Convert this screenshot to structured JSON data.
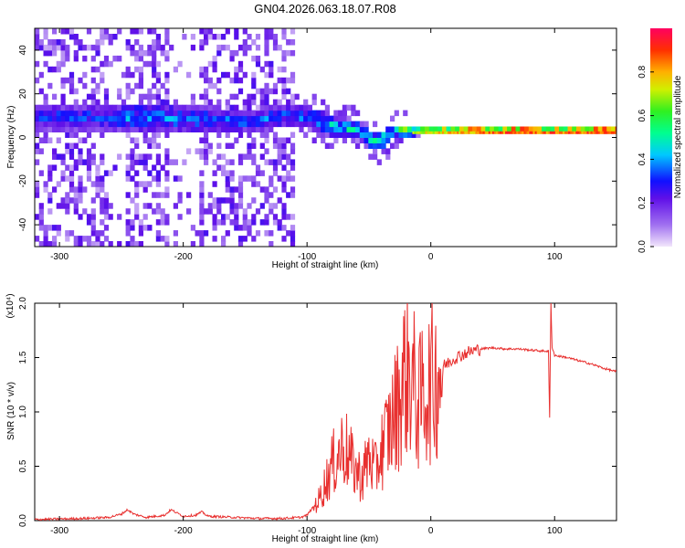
{
  "title": "GN04.2026.063.18.07.R08",
  "chart_data": [
    {
      "type": "heatmap",
      "name": "spectrogram",
      "xlabel": "Height of straight line (km)",
      "ylabel": "Frequency (Hz)",
      "xlim": [
        -320,
        150
      ],
      "ylim": [
        -50,
        50
      ],
      "xticks": [
        -300,
        -200,
        -100,
        0,
        100
      ],
      "yticks": [
        -40,
        -20,
        0,
        20,
        40
      ],
      "colorbar": {
        "label": "Normalized spectral amplitude",
        "range": [
          0,
          1
        ],
        "ticks": [
          0.0,
          0.2,
          0.4,
          0.6,
          0.8
        ]
      },
      "signal_band": [
        {
          "x": -265,
          "center": 8,
          "width": 6,
          "amp": 0.35
        },
        {
          "x": -240,
          "center": 8,
          "width": 7,
          "amp": 0.4
        },
        {
          "x": -220,
          "center": 8,
          "width": 7,
          "amp": 0.4
        },
        {
          "x": -200,
          "center": 7,
          "width": 6,
          "amp": 0.38
        },
        {
          "x": -180,
          "center": 7,
          "width": 6,
          "amp": 0.38
        },
        {
          "x": -150,
          "center": 6,
          "width": 5,
          "amp": 0.35
        },
        {
          "x": -120,
          "center": 9,
          "width": 6,
          "amp": 0.35
        },
        {
          "x": -100,
          "center": 8,
          "width": 5,
          "amp": 0.4
        },
        {
          "x": -80,
          "center": 4,
          "width": 5,
          "amp": 0.45
        },
        {
          "x": -60,
          "center": 2,
          "width": 4,
          "amp": 0.5
        },
        {
          "x": -45,
          "center": -4,
          "width": 4,
          "amp": 0.55
        },
        {
          "x": -30,
          "center": 2,
          "width": 3,
          "amp": 0.6
        },
        {
          "x": -10,
          "center": 2,
          "width": 2,
          "amp": 0.75
        },
        {
          "x": 10,
          "center": 2,
          "width": 2,
          "amp": 0.8
        },
        {
          "x": 50,
          "center": 2,
          "width": 2,
          "amp": 0.9
        },
        {
          "x": 100,
          "center": 2,
          "width": 2,
          "amp": 0.9
        },
        {
          "x": 150,
          "center": 2,
          "width": 2,
          "amp": 0.9
        }
      ]
    },
    {
      "type": "line",
      "name": "snr",
      "xlabel": "Height of straight line (km)",
      "ylabel": "SNR (10 * v/v)",
      "scale_label": "(x10⁴)",
      "color": "#e8302f",
      "xlim": [
        -320,
        150
      ],
      "ylim": [
        0,
        2.0
      ],
      "xticks": [
        -300,
        -200,
        -100,
        0,
        100
      ],
      "yticks": [
        0.0,
        0.5,
        1.0,
        1.5,
        2.0
      ],
      "x": [
        -320,
        -280,
        -260,
        -250,
        -245,
        -240,
        -230,
        -215,
        -210,
        -200,
        -190,
        -185,
        -180,
        -160,
        -140,
        -120,
        -105,
        -100,
        -90,
        -80,
        -75,
        -70,
        -65,
        -60,
        -55,
        -50,
        -45,
        -40,
        -35,
        -30,
        -25,
        -20,
        -15,
        -10,
        -5,
        0,
        5,
        10,
        20,
        30,
        40,
        50,
        60,
        70,
        80,
        90,
        95,
        96,
        97,
        98,
        100,
        110,
        120,
        130,
        140,
        150
      ],
      "y": [
        0.01,
        0.02,
        0.03,
        0.06,
        0.1,
        0.06,
        0.03,
        0.05,
        0.1,
        0.04,
        0.05,
        0.08,
        0.04,
        0.03,
        0.02,
        0.02,
        0.03,
        0.05,
        0.2,
        0.5,
        0.6,
        0.7,
        0.55,
        0.45,
        0.4,
        0.6,
        0.45,
        0.65,
        0.8,
        0.95,
        1.15,
        1.4,
        1.3,
        1.05,
        1.2,
        1.25,
        1.35,
        1.42,
        1.5,
        1.55,
        1.58,
        1.59,
        1.58,
        1.58,
        1.57,
        1.56,
        1.56,
        0.95,
        2.0,
        1.6,
        1.52,
        1.5,
        1.47,
        1.44,
        1.4,
        1.37
      ]
    }
  ]
}
